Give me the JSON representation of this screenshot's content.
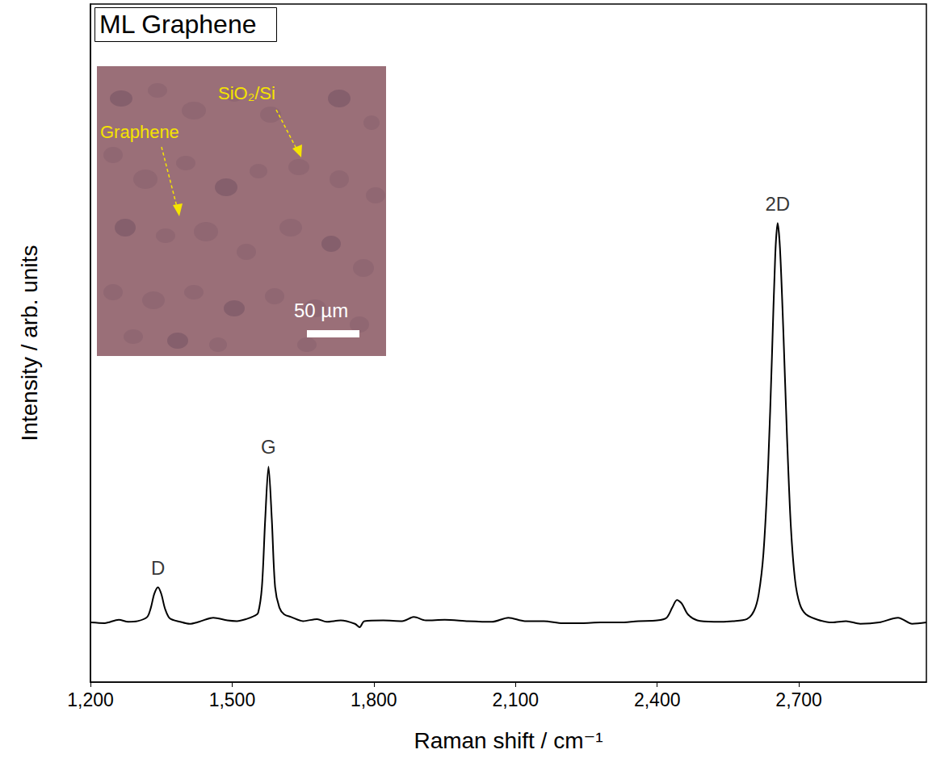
{
  "chart_data": {
    "type": "line",
    "title": "ML Graphene",
    "x_label": "Raman shift / cm⁻¹",
    "y_label": "Intensity / arb. units",
    "xlim": [
      1200,
      2970
    ],
    "xticks": [
      1200,
      1500,
      1800,
      2100,
      2400,
      2700
    ],
    "ylim": [
      0,
      100
    ],
    "yticks": [],
    "tick_labels": "x",
    "grid": false,
    "color": "#000000",
    "marker": "none",
    "line_style": "solid",
    "x": [
      1200,
      1230,
      1260,
      1280,
      1300,
      1320,
      1328,
      1335,
      1343,
      1350,
      1358,
      1368,
      1390,
      1410,
      1430,
      1460,
      1490,
      1510,
      1530,
      1548,
      1555,
      1563,
      1570,
      1577,
      1584,
      1591,
      1600,
      1610,
      1625,
      1650,
      1680,
      1700,
      1730,
      1760,
      1770,
      1780,
      1820,
      1860,
      1885,
      1910,
      1950,
      2000,
      2050,
      2085,
      2120,
      2160,
      2200,
      2240,
      2280,
      2320,
      2360,
      2400,
      2420,
      2432,
      2442,
      2452,
      2465,
      2485,
      2520,
      2560,
      2590,
      2605,
      2615,
      2625,
      2635,
      2643,
      2650,
      2655,
      2660,
      2667,
      2675,
      2683,
      2692,
      2702,
      2715,
      2740,
      2770,
      2800,
      2830,
      2870,
      2910,
      2940,
      2970
    ],
    "values": [
      8.8,
      8.7,
      9.2,
      8.9,
      9.0,
      9.6,
      11.0,
      13.0,
      14.0,
      13.0,
      10.8,
      9.4,
      8.9,
      8.6,
      8.9,
      9.5,
      9.1,
      9.0,
      9.3,
      9.8,
      10.2,
      14.0,
      24.0,
      31.8,
      24.0,
      14.0,
      11.0,
      10.0,
      9.6,
      9.0,
      9.3,
      8.9,
      9.1,
      8.6,
      8.1,
      9.0,
      9.1,
      9.0,
      9.6,
      9.1,
      9.2,
      9.0,
      8.9,
      9.5,
      9.0,
      9.0,
      8.7,
      8.7,
      8.8,
      8.8,
      9.0,
      9.1,
      9.5,
      11.0,
      12.1,
      11.6,
      10.0,
      9.1,
      8.9,
      9.0,
      9.3,
      10.5,
      13.0,
      19.0,
      32.0,
      48.0,
      63.0,
      67.7,
      64.0,
      52.0,
      36.0,
      23.0,
      15.0,
      11.5,
      10.0,
      9.2,
      8.8,
      9.0,
      8.6,
      8.8,
      9.5,
      8.6,
      8.8
    ],
    "annotations": [
      {
        "text": "D",
        "x": 1343,
        "y": 14.0
      },
      {
        "text": "G",
        "x": 1577,
        "y": 31.8
      },
      {
        "text": "2D",
        "x": 2655,
        "y": 67.7
      }
    ],
    "inset": {
      "labels": [
        "Graphene",
        "SiO₂/Si"
      ],
      "scale_bar": "50 µm"
    }
  }
}
